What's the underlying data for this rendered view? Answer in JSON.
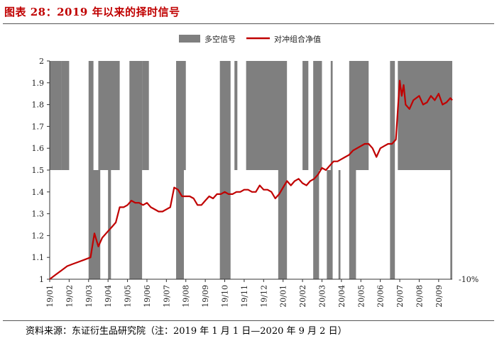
{
  "header": {
    "title": "图表 28：2019 年以来的择时信号"
  },
  "footer": {
    "source": "资料来源：东证衍生品研究院（注：2019 年 1 月 1 日—2020 年 9 月 2 日）"
  },
  "chart_data": {
    "type": "line",
    "title": "图表 28：2019 年以来的择时信号",
    "xlabel": "",
    "ylabel": "",
    "ylim": [
      1.0,
      2.0
    ],
    "yticks": [
      "2",
      "1.9",
      "1.8",
      "1.7",
      "1.6",
      "1.5",
      "1.4",
      "1.3",
      "1.2",
      "1.1",
      "1"
    ],
    "annotation": "-10%",
    "categories": [
      "19/01",
      "19/02",
      "19/03",
      "19/04",
      "19/05",
      "19/06",
      "19/07",
      "19/08",
      "19/09",
      "19/10",
      "19/11",
      "19/12",
      "20/01",
      "20/02",
      "20/03",
      "20/04",
      "20/05",
      "20/06",
      "20/07",
      "20/08",
      "20/09"
    ],
    "legend": {
      "position": "top",
      "signal": "多空信号",
      "nav": "对冲组合净值"
    },
    "colors": {
      "signal": "#7f7f7f",
      "nav": "#c00000"
    },
    "signal_spans": [
      {
        "start": 0.0,
        "end": 0.6,
        "value": "long"
      },
      {
        "start": 0.6,
        "end": 1.0,
        "value": "long"
      },
      {
        "start": 2.0,
        "end": 2.25,
        "value": "long"
      },
      {
        "start": 2.5,
        "end": 3.6,
        "value": "long"
      },
      {
        "start": 4.1,
        "end": 4.75,
        "value": "long"
      },
      {
        "start": 4.75,
        "end": 5.1,
        "value": "long"
      },
      {
        "start": 6.5,
        "end": 7.0,
        "value": "long"
      },
      {
        "start": 8.75,
        "end": 9.3,
        "value": "long"
      },
      {
        "start": 9.5,
        "end": 9.65,
        "value": "long"
      },
      {
        "start": 10.1,
        "end": 12.2,
        "value": "long"
      },
      {
        "start": 13.0,
        "end": 13.3,
        "value": "long"
      },
      {
        "start": 13.55,
        "end": 14.0,
        "value": "long"
      },
      {
        "start": 14.45,
        "end": 14.55,
        "value": "long"
      },
      {
        "start": 15.4,
        "end": 16.4,
        "value": "long"
      },
      {
        "start": 17.5,
        "end": 17.75,
        "value": "long"
      },
      {
        "start": 17.9,
        "end": 20.7,
        "value": "long"
      }
    ],
    "short_spans": [
      {
        "start": 2.0,
        "end": 2.6
      },
      {
        "start": 3.0,
        "end": 3.15
      },
      {
        "start": 4.1,
        "end": 4.75
      },
      {
        "start": 6.5,
        "end": 6.9
      },
      {
        "start": 8.75,
        "end": 9.3
      },
      {
        "start": 11.75,
        "end": 12.2
      },
      {
        "start": 13.55,
        "end": 13.85
      },
      {
        "start": 14.25,
        "end": 14.55
      },
      {
        "start": 14.85,
        "end": 14.95
      },
      {
        "start": 15.4,
        "end": 15.75
      },
      {
        "start": 17.5,
        "end": 17.75
      },
      {
        "start": 20.6,
        "end": 20.7
      }
    ],
    "nav": {
      "x": [
        0.0,
        0.3,
        0.6,
        0.9,
        1.2,
        1.5,
        1.8,
        2.1,
        2.3,
        2.5,
        2.7,
        3.0,
        3.2,
        3.4,
        3.6,
        3.8,
        4.0,
        4.2,
        4.4,
        4.6,
        4.8,
        5.0,
        5.2,
        5.4,
        5.6,
        5.8,
        6.0,
        6.2,
        6.4,
        6.6,
        6.8,
        7.0,
        7.2,
        7.4,
        7.6,
        7.8,
        8.0,
        8.2,
        8.4,
        8.6,
        8.8,
        9.0,
        9.2,
        9.4,
        9.6,
        9.8,
        10.0,
        10.2,
        10.4,
        10.6,
        10.8,
        11.0,
        11.2,
        11.4,
        11.6,
        11.8,
        12.0,
        12.2,
        12.4,
        12.6,
        12.8,
        13.0,
        13.2,
        13.4,
        13.6,
        13.8,
        14.0,
        14.2,
        14.4,
        14.6,
        14.8,
        15.0,
        15.2,
        15.4,
        15.6,
        15.8,
        16.0,
        16.2,
        16.4,
        16.6,
        16.8,
        17.0,
        17.2,
        17.4,
        17.6,
        17.8,
        18.0,
        18.1,
        18.2,
        18.3,
        18.5,
        18.7,
        19.0,
        19.2,
        19.4,
        19.6,
        19.8,
        20.0,
        20.2,
        20.4,
        20.6,
        20.7
      ],
      "values": [
        1.0,
        1.02,
        1.04,
        1.06,
        1.07,
        1.08,
        1.09,
        1.1,
        1.21,
        1.15,
        1.19,
        1.22,
        1.24,
        1.26,
        1.33,
        1.33,
        1.34,
        1.36,
        1.35,
        1.35,
        1.34,
        1.35,
        1.33,
        1.32,
        1.31,
        1.31,
        1.32,
        1.33,
        1.42,
        1.41,
        1.38,
        1.38,
        1.38,
        1.37,
        1.34,
        1.34,
        1.36,
        1.38,
        1.37,
        1.39,
        1.39,
        1.4,
        1.39,
        1.39,
        1.4,
        1.4,
        1.41,
        1.41,
        1.4,
        1.4,
        1.43,
        1.41,
        1.41,
        1.4,
        1.37,
        1.39,
        1.42,
        1.45,
        1.43,
        1.45,
        1.46,
        1.44,
        1.43,
        1.45,
        1.46,
        1.48,
        1.51,
        1.5,
        1.52,
        1.54,
        1.54,
        1.55,
        1.56,
        1.57,
        1.59,
        1.6,
        1.61,
        1.62,
        1.62,
        1.6,
        1.56,
        1.6,
        1.61,
        1.62,
        1.62,
        1.64,
        1.91,
        1.84,
        1.89,
        1.8,
        1.78,
        1.82,
        1.84,
        1.8,
        1.81,
        1.84,
        1.82,
        1.85,
        1.8,
        1.81,
        1.83,
        1.82
      ]
    }
  }
}
